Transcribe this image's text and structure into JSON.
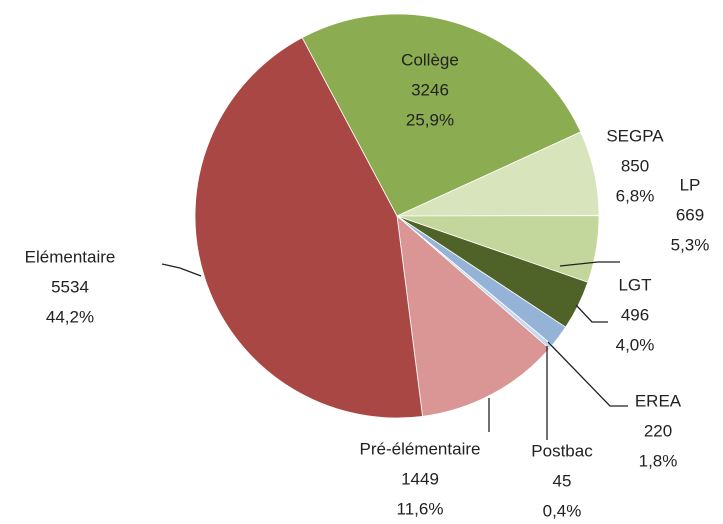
{
  "chart_data": {
    "type": "pie",
    "categories": [
      "Collège",
      "SEGPA",
      "LP",
      "LGT",
      "EREA",
      "Postbac",
      "Pré-élémentaire",
      "Elémentaire"
    ],
    "values": [
      3246,
      850,
      669,
      496,
      220,
      45,
      1449,
      5534
    ],
    "percent_labels": [
      "25,9%",
      "6,8%",
      "5,3%",
      "4,0%",
      "1,8%",
      "0,4%",
      "11,6%",
      "44,2%"
    ],
    "colors": [
      "#8bac50",
      "#d8e4bc",
      "#c3d69b",
      "#4f6228",
      "#95b3d7",
      "#c6d9f1",
      "#d99694",
      "#a94744"
    ]
  }
}
